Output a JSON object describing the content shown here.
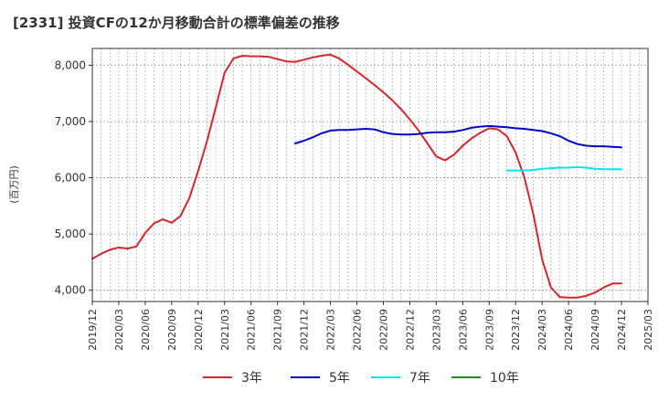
{
  "chart_data": {
    "type": "line",
    "title": "[2331]  投資CFの12か月移動合計の標準偏差の推移",
    "ylabel": "(百万円)",
    "xlabel": "",
    "ylim": [
      3800,
      8300
    ],
    "yticks": [
      4000,
      5000,
      6000,
      7000,
      8000
    ],
    "ytick_labels": [
      "4,000",
      "5,000",
      "6,000",
      "7,000",
      "8,000"
    ],
    "x_start": "2019/12",
    "x_end": "2025/03",
    "xtick_labels": [
      "2019/12",
      "2020/03",
      "2020/06",
      "2020/09",
      "2020/12",
      "2021/03",
      "2021/06",
      "2021/09",
      "2021/12",
      "2022/03",
      "2022/06",
      "2022/09",
      "2022/12",
      "2023/03",
      "2023/06",
      "2023/09",
      "2023/12",
      "2024/03",
      "2024/06",
      "2024/09",
      "2024/12",
      "2025/03"
    ],
    "grid": true,
    "legend_position": "bottom",
    "series": [
      {
        "name": "3年",
        "color": "#d62728",
        "start": "2019/12",
        "values": [
          4560,
          4650,
          4720,
          4760,
          4740,
          4780,
          5020,
          5190,
          5260,
          5200,
          5320,
          5640,
          6120,
          6650,
          7250,
          7870,
          8120,
          8170,
          8160,
          8160,
          8150,
          8110,
          8070,
          8060,
          8100,
          8140,
          8170,
          8190,
          8120,
          8010,
          7890,
          7770,
          7650,
          7520,
          7380,
          7220,
          7040,
          6840,
          6610,
          6380,
          6310,
          6410,
          6570,
          6700,
          6800,
          6880,
          6860,
          6740,
          6450,
          6000,
          5360,
          4550,
          4050,
          3880,
          3870,
          3870,
          3900,
          3960,
          4050,
          4120,
          4120
        ]
      },
      {
        "name": "5年",
        "color": "#0000cc",
        "start": "2021/11",
        "values": [
          6610,
          6660,
          6720,
          6790,
          6840,
          6850,
          6850,
          6860,
          6870,
          6860,
          6810,
          6780,
          6770,
          6770,
          6780,
          6800,
          6810,
          6810,
          6820,
          6850,
          6890,
          6910,
          6920,
          6910,
          6900,
          6880,
          6870,
          6850,
          6830,
          6790,
          6740,
          6660,
          6600,
          6570,
          6560,
          6560,
          6550,
          6540
        ]
      },
      {
        "name": "7年",
        "color": "#00e5ee",
        "start": "2023/11",
        "values": [
          6130,
          6130,
          6130,
          6140,
          6160,
          6170,
          6180,
          6180,
          6190,
          6180,
          6160,
          6150,
          6150,
          6150
        ]
      },
      {
        "name": "10年",
        "color": "#228b22",
        "start": "2024/12",
        "values": []
      }
    ]
  }
}
